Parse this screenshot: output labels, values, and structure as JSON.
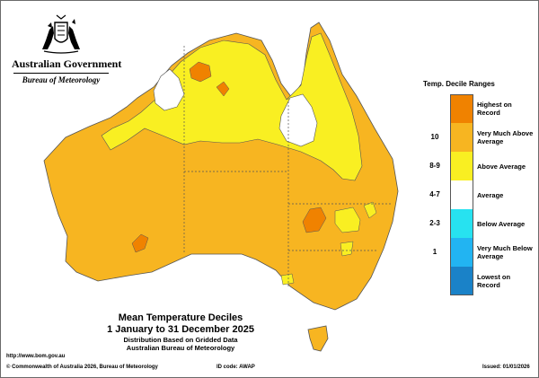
{
  "branding": {
    "government": "Australian Government",
    "bureau": "Bureau of Meteorology",
    "crest_icon": "commonwealth-coat-of-arms"
  },
  "title": {
    "main": [
      "Mean Temperature Deciles",
      "1 January to 31 December 2025"
    ],
    "sub": [
      "Distribution Based on Gridded Data",
      "Australian Bureau of Meteorology"
    ]
  },
  "legend": {
    "title": "Temp. Decile Ranges",
    "items": [
      {
        "range": "",
        "label": "Highest on Record",
        "color": "#f08200"
      },
      {
        "range": "10",
        "label": "Very Much Above Average",
        "color": "#f7b521"
      },
      {
        "range": "8-9",
        "label": "Above Average",
        "color": "#f9ef22"
      },
      {
        "range": "4-7",
        "label": "Average",
        "color": "#ffffff"
      },
      {
        "range": "2-3",
        "label": "Below Average",
        "color": "#27e2f0"
      },
      {
        "range": "1",
        "label": "Very Much Below Average",
        "color": "#22b4f2"
      },
      {
        "range": "",
        "label": "Lowest on Record",
        "color": "#1a82c8"
      }
    ]
  },
  "footer": {
    "website": "http://www.bom.gov.au",
    "copyright": "© Commonwealth of Australia 2026, Bureau of Meteorology",
    "id_code": "ID code: AWAP",
    "issued": "Issued: 01/01/2026"
  }
}
